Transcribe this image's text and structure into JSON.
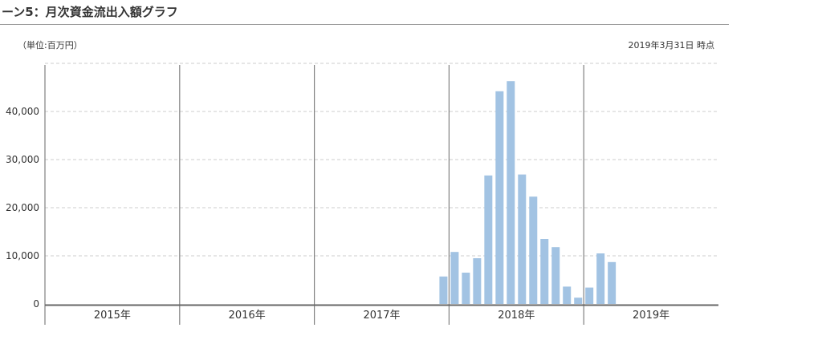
{
  "header": {
    "title": "ーン5：月次資金流出入額グラフ"
  },
  "unit_label": "（単位:百万円）",
  "as_of_label": "2019年3月31日 時点",
  "colors": {
    "bar": "#a2c3e3",
    "grid": "#cccccc",
    "divider": "#808080",
    "axis": "#666666"
  },
  "chart_data": {
    "type": "bar",
    "title": "",
    "xlabel": "",
    "ylabel": "",
    "ylim": [
      0,
      50000
    ],
    "yticks": [
      0,
      10000,
      20000,
      30000,
      40000
    ],
    "ytick_labels": [
      "0",
      "10,000",
      "20,000",
      "30,000",
      "40,000"
    ],
    "grid": true,
    "year_groups": [
      "2015年",
      "2016年",
      "2017年",
      "2018年",
      "2019年"
    ],
    "bars": [
      {
        "year": "2017年",
        "month": 12,
        "value": 5700
      },
      {
        "year": "2018年",
        "month": 1,
        "value": 10800
      },
      {
        "year": "2018年",
        "month": 2,
        "value": 6500
      },
      {
        "year": "2018年",
        "month": 3,
        "value": 9500
      },
      {
        "year": "2018年",
        "month": 4,
        "value": 26700
      },
      {
        "year": "2018年",
        "month": 5,
        "value": 44200
      },
      {
        "year": "2018年",
        "month": 6,
        "value": 46300
      },
      {
        "year": "2018年",
        "month": 7,
        "value": 26900
      },
      {
        "year": "2018年",
        "month": 8,
        "value": 22300
      },
      {
        "year": "2018年",
        "month": 9,
        "value": 13500
      },
      {
        "year": "2018年",
        "month": 10,
        "value": 11800
      },
      {
        "year": "2018年",
        "month": 11,
        "value": 3600
      },
      {
        "year": "2018年",
        "month": 12,
        "value": 1300
      },
      {
        "year": "2019年",
        "month": 1,
        "value": 3400
      },
      {
        "year": "2019年",
        "month": 2,
        "value": 10500
      },
      {
        "year": "2019年",
        "month": 3,
        "value": 8700
      }
    ]
  }
}
